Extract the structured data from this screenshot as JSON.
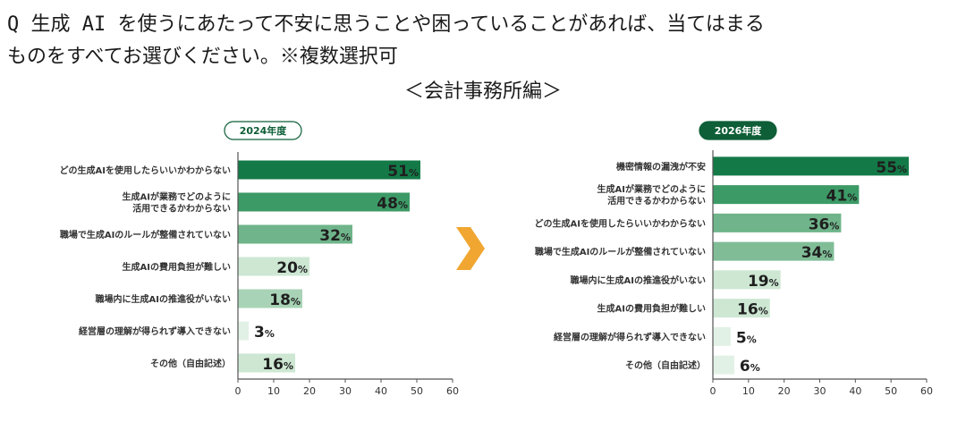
{
  "question": {
    "line1": "Q 生成 AI を使うにあたって不安に思うことや困っていることがあれば、当てはまる",
    "line2": "ものをすべてお選びください。※複数選択可",
    "subtitle": "＜会計事務所編＞"
  },
  "arrow_color": "#f0a630",
  "chart_data": [
    {
      "type": "bar",
      "orientation": "horizontal",
      "title": "2024年度",
      "categories": [
        [
          "どの生成AIを使用したらいいかわからない"
        ],
        [
          "生成AIが業務でどのように",
          "活用できるかわからない"
        ],
        [
          "職場で生成AIのルールが整備されていない"
        ],
        [
          "生成AIの費用負担が難しい"
        ],
        [
          "職場内に生成AIの推進役がいない"
        ],
        [
          "経営層の理解が得られず導入できない"
        ],
        [
          "その他（自由記述）"
        ]
      ],
      "values": [
        51,
        48,
        32,
        20,
        18,
        3,
        16
      ],
      "value_labels": [
        "51",
        "48",
        "32",
        "20",
        "18",
        "3",
        "16"
      ],
      "unit": "%",
      "xlim": [
        0,
        60
      ],
      "xticks": [
        "0",
        "10",
        "20",
        "30",
        "40",
        "50",
        "60"
      ],
      "colors": [
        "#137a47",
        "#3c9a66",
        "#6fb48a",
        "#cde7d3",
        "#a8d3b6",
        "#e2f1e5",
        "#cde7d3"
      ]
    },
    {
      "type": "bar",
      "orientation": "horizontal",
      "title": "2026年度",
      "categories": [
        [
          "機密情報の漏洩が不安"
        ],
        [
          "生成AIが業務でどのように",
          "活用できるかわからない"
        ],
        [
          "どの生成AIを使用したらいいかわからない"
        ],
        [
          "職場で生成AIのルールが整備されていない"
        ],
        [
          "職場内に生成AIの推進役がいない"
        ],
        [
          "生成AIの費用負担が難しい"
        ],
        [
          "経営層の理解が得られず導入できない"
        ],
        [
          "その他（自由記述）"
        ]
      ],
      "values": [
        55,
        41,
        36,
        34,
        19,
        16,
        5,
        6
      ],
      "value_labels": [
        "55",
        "41",
        "36",
        "34",
        "19",
        "16",
        "5",
        "6"
      ],
      "unit": "%",
      "xlim": [
        0,
        60
      ],
      "xticks": [
        "0",
        "10",
        "20",
        "30",
        "40",
        "50",
        "60"
      ],
      "colors": [
        "#137a47",
        "#3c9a66",
        "#6fb48a",
        "#80bd97",
        "#cde7d3",
        "#cde7d3",
        "#e2f1e5",
        "#e2f1e5"
      ]
    }
  ]
}
